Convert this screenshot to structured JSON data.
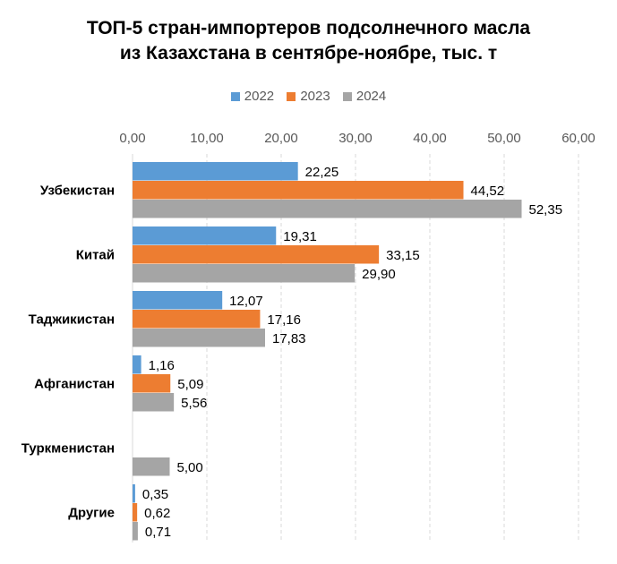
{
  "chart_data": {
    "type": "bar",
    "orientation": "horizontal",
    "title_lines": [
      "ТОП-5 стран-импортеров подсолнечного масла",
      "из Казахстана в сентябре-ноябре, тыс. т"
    ],
    "categories": [
      "Узбекистан",
      "Китай",
      "Таджикистан",
      "Афганистан",
      "Туркменистан",
      "Другие"
    ],
    "series": [
      {
        "name": "2022",
        "color": "#5B9BD5",
        "values": [
          22.25,
          19.31,
          12.07,
          1.16,
          null,
          0.35
        ],
        "labels": [
          "22,25",
          "19,31",
          "12,07",
          "1,16",
          "",
          "0,35"
        ]
      },
      {
        "name": "2023",
        "color": "#ED7D31",
        "values": [
          44.52,
          33.15,
          17.16,
          5.09,
          null,
          0.62
        ],
        "labels": [
          "44,52",
          "33,15",
          "17,16",
          "5,09",
          "",
          "0,62"
        ]
      },
      {
        "name": "2024",
        "color": "#A5A5A5",
        "values": [
          52.35,
          29.9,
          17.83,
          5.56,
          5.0,
          0.71
        ],
        "labels": [
          "52,35",
          "29,90",
          "17,83",
          "5,56",
          "5,00",
          "0,71"
        ]
      }
    ],
    "xlim": [
      0,
      60
    ],
    "x_ticks": [
      "0,00",
      "10,00",
      "20,00",
      "30,00",
      "40,00",
      "50,00",
      "60,00"
    ],
    "x_tick_values": [
      0,
      10,
      20,
      30,
      40,
      50,
      60
    ],
    "grid": "vertical-dashed",
    "legend_position": "top"
  }
}
